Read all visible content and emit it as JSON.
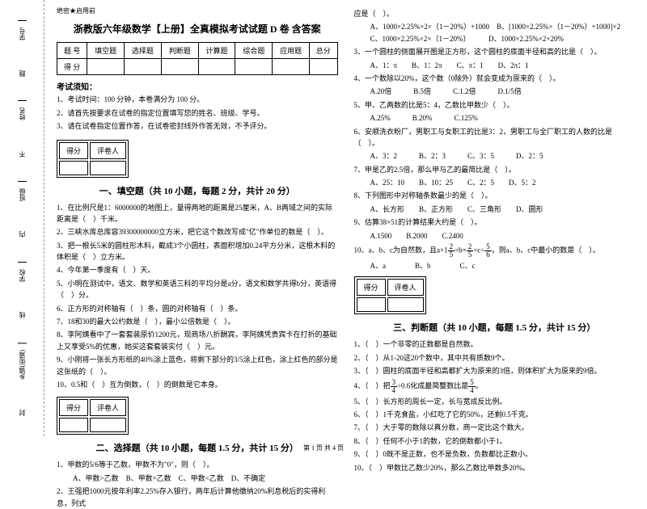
{
  "secret": "绝密★启用前",
  "title": "浙教版六年级数学【上册】全真模拟考试试题 D 卷 含答案",
  "binding": {
    "labels": [
      "乡镇(街道)",
      "学校",
      "班级",
      "姓名",
      "学号"
    ],
    "marks": [
      "封",
      "线",
      "内",
      "不",
      "题"
    ]
  },
  "score_table": {
    "headers": [
      "题 号",
      "填空题",
      "选择题",
      "判断题",
      "计算题",
      "综合题",
      "应用题",
      "总分"
    ],
    "row_label": "得 分"
  },
  "notice_title": "考试须知：",
  "notices": [
    "1、考试时间：100 分钟，本卷满分为 100 分。",
    "2、请首先按要求在试卷的指定位置填写您的姓名、班级、学号。",
    "3、请在试卷指定位置作答，在试卷密封线外作答无效，不予评分。"
  ],
  "score_box": {
    "c1": "得分",
    "c2": "评卷人"
  },
  "section1": {
    "title": "一、填空题（共 10 小题，每题 2 分，共计 20 分）",
    "q1": "1、在比例尺是1：6000000的地图上，量得两地的距离是25厘米，A、B两域之间的实际距离是（　）千米。",
    "q2": "2、三峡水库总库容39300000000立方米，把它这个数改写成\"亿\"作单位的数是（　）。",
    "q3": "3、把一根长5米的圆柱形木料，截成3个小圆柱，表面积增加0.24平方分米，这根木料的体积是（　）立方米。",
    "q4": "4、今年第一季度有（　）天。",
    "q5": "5、小明在测试中，语文、数学和英语三科的平均分是a分，语文和数学共得b分，英语得（　）分。",
    "q6": "6、正方形的对称轴有（　）条，圆的对称轴有（　）条。",
    "q7": "7、18和30的最大公约数是（　），最小公倍数是（　）。",
    "q8": "8、李阿姨看中了一套套装原价1200元，现商场八折酬宾，李阿姨凭贵宾卡在打折的基础上又享受5%的优惠，她买这套套装实付（　）元。",
    "q9": "9、小刚将一张长方形纸的40%涂上蓝色，将剩下部分的3/5涂上红色，涂上红色的部分是这张纸的（　）。",
    "q10": "10、0.5和（　）互为倒数，（　）的倒数是它本身。"
  },
  "section2": {
    "title": "二、选择题（共 10 小题，每题 1.5 分，共计 15 分）",
    "q1": "1、甲数的5/6等于乙数，甲数不为\"0\"，则（　）。",
    "q1_opts": "A、甲数>乙数　B、甲数=乙数　C、甲数<乙数　D、不确定",
    "q2": "2、王强把1000元按年利率2.25%存入银行，两年后计算他缴纳20%利息税后的实得利息，列式",
    "q2_cont": "应是（　）。",
    "q2_a": "A、1000×2.25%×2×（1－20%）+1000　B、[1000×2.25%×（1－20%）+1000]×2",
    "q2_c": "C、1000×2.25%×2×（1－20%）　　　D、1000×2.25%×2×20%",
    "q3": "3、一个圆柱的侧面展开图是正方形，这个圆柱的底面半径和高的比是（　）。",
    "q3_opts": "A、1：π　　B、1：2π　　C、π：1　　D、2π：1",
    "q4": "4、一个数除以20%，这个数（0除外）就会变成为原来的（　）。",
    "q4_opts": "A.20倍　　　B.5倍　　　C.1.2倍　　　D.1/5倍",
    "q5": "5、甲、乙两数的比是5：4，乙数比甲数少（　）。",
    "q5_opts": "A.25%　　　B.20%　　　C.125%",
    "q6": "6、安顺洗衣粉厂，男职工与女职工的比是3：2，男职工与全厂职工的人数的比是（　）。",
    "q6_opts": "A、3：2　　　B、2：3　　　C、3：5　　　D、2：5",
    "q7": "7、甲是乙的2.5倍，那么甲与乙的最简比是（　）。",
    "q7_opts": "A、25：10　　B、10：25　　C、2：5　　D、5：2",
    "q8": "8、下列图形中对称轴条数最少的是（　）。",
    "q8_opts": "A、长方形　　B、正方形　　C、三角形　　D、圆形",
    "q9": "9、估算38×51的计算结果大约是（　）。",
    "q9_opts": "A.1500　　B.2000　　C.2400",
    "q10_pre": "10、a、b、c为自然数，且a×1",
    "q10_mid": "=b×",
    "q10_mid2": "=c÷",
    "q10_end": "，则a、b、c中最小的数是（　）。",
    "q10_opts": "A、a　　　　B、b　　　　C、c"
  },
  "section3": {
    "title": "三、判断题（共 10 小题，每题 1.5 分，共计 15 分）",
    "q1": "1、（　）一个非零的正数都是自然数。",
    "q2": "2、（　）从1-20这20个数中，其中共有质数9个。",
    "q3": "3、（　）圆柱的底面半径和高都扩大为原来的3倍，则体积扩大为原来的9倍。",
    "q4_pre": "4、（　）把",
    "q4_mid": "÷0.6化成最简整数比是",
    "q4_end": "。",
    "q5": "5、（　）长方形的周长一定，长与宽成反比例。",
    "q6": "6、（　）1千克食盐，小红吃了它的50%，还剩0.5千克。",
    "q7": "7、（　）大于零的数除以真分数，商一定比这个数大。",
    "q8": "8、（　）任何不小于1的数，它的倒数都小于1。",
    "q9": "9、（　）0既不是正数，也不是负数，负数都比正数小。",
    "q10": "10、（　）甲数比乙数少20%，那么乙数比甲数多20%。"
  },
  "footer": "第 1 页 共 4 页"
}
